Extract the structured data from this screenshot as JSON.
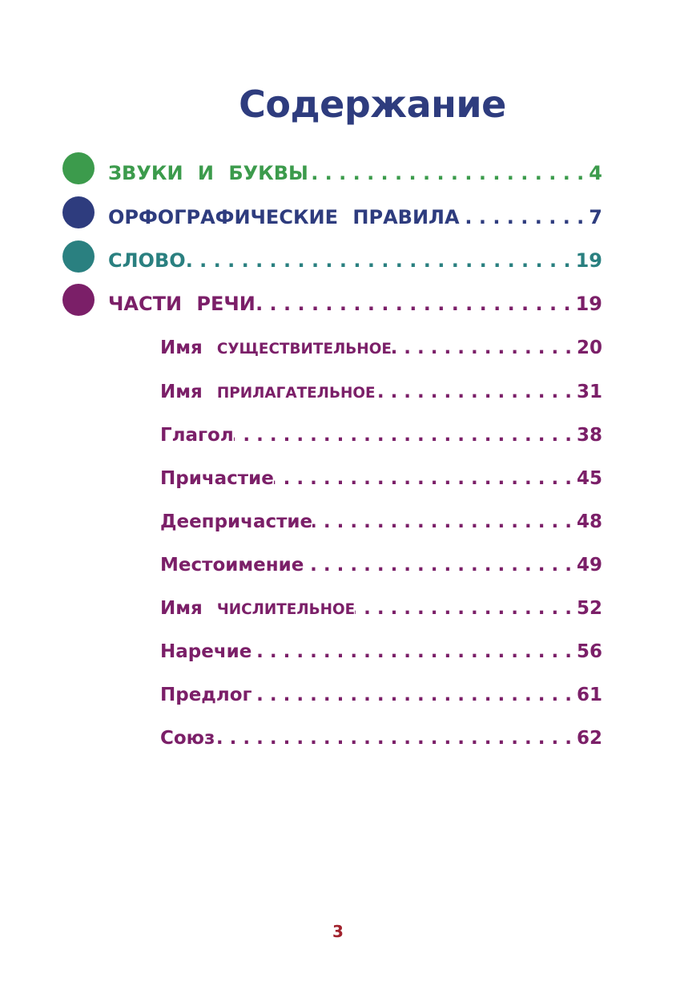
{
  "title": "Содержание",
  "colors": {
    "title": "#2e3c7e",
    "sounds": "#3c9b4c",
    "spelling": "#2e3c7e",
    "word": "#2a8080",
    "parts": "#7b1f68",
    "page_number": "#a1222d"
  },
  "sections": [
    {
      "label": "ЗВУКИ И БУКВЫ",
      "page": "4",
      "color": "#3c9b4c"
    },
    {
      "label": "ОРФОГРАФИЧЕСКИЕ ПРАВИЛА",
      "page": "7",
      "color": "#2e3c7e"
    },
    {
      "label": "СЛОВО",
      "page": "19",
      "color": "#2a8080"
    },
    {
      "label": "ЧАСТИ РЕЧИ",
      "page": "19",
      "color": "#7b1f68"
    }
  ],
  "subsections": [
    {
      "first": "Имя",
      "rest": "существительное",
      "page": "20"
    },
    {
      "first": "Имя",
      "rest": "прилагательное",
      "page": "31"
    },
    {
      "first": "Глагол",
      "rest": "",
      "page": "38"
    },
    {
      "first": "Причастие",
      "rest": "",
      "page": "45"
    },
    {
      "first": "Деепричастие",
      "rest": "",
      "page": "48"
    },
    {
      "first": "Местоимение",
      "rest": "",
      "page": "49"
    },
    {
      "first": "Имя",
      "rest": "числительное",
      "page": "52"
    },
    {
      "first": "Наречие",
      "rest": "",
      "page": "56"
    },
    {
      "first": "Предлог",
      "rest": "",
      "page": "61"
    },
    {
      "first": "Союз",
      "rest": "",
      "page": "62"
    }
  ],
  "page_number": "3"
}
